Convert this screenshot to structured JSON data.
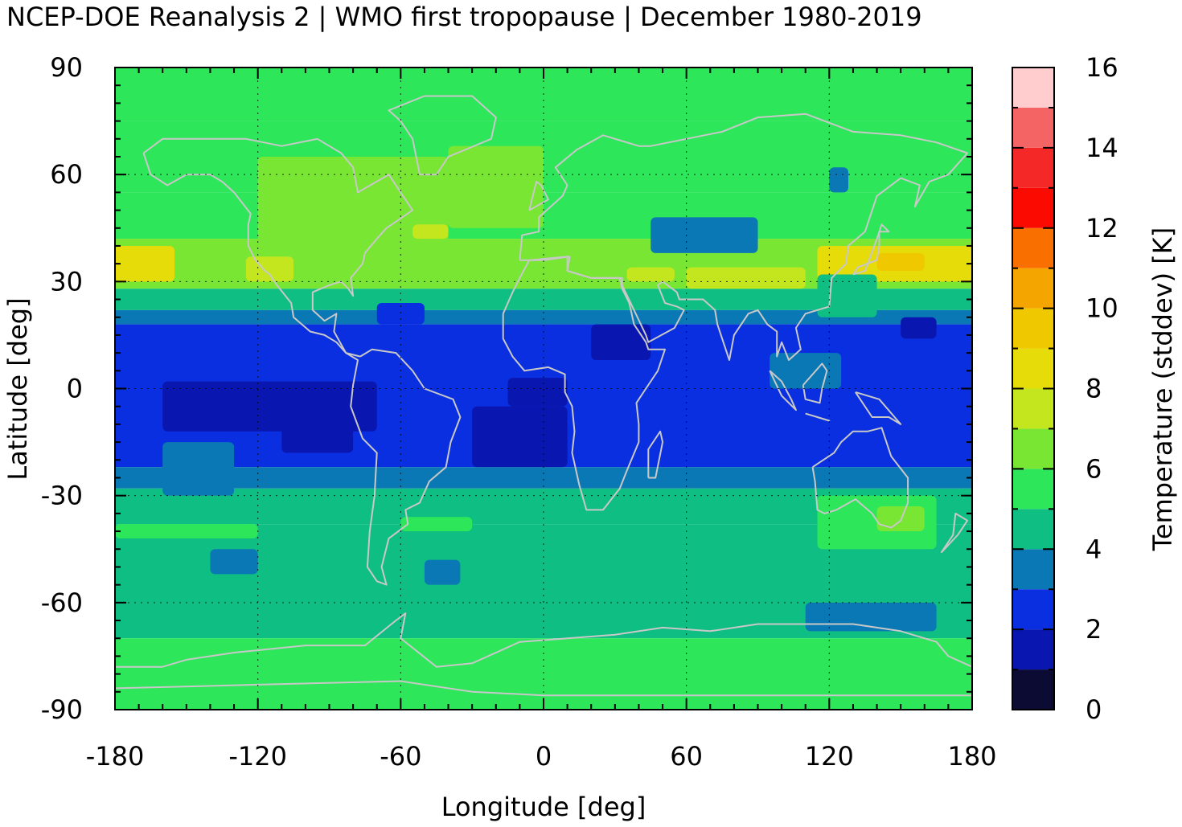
{
  "title": "NCEP-DOE Reanalysis 2 | WMO first tropopause | December 1980-2019",
  "chart_data": {
    "type": "heatmap",
    "xlabel": "Longitude [deg]",
    "ylabel": "Latitude [deg]",
    "colorbar_label": "Temperature (stddev) [K]",
    "xlim": [
      -180,
      180
    ],
    "ylim": [
      -90,
      90
    ],
    "x_ticks": [
      "-180",
      "-120",
      "-60",
      "0",
      "60",
      "120",
      "180"
    ],
    "y_ticks": [
      "90",
      "60",
      "30",
      "0",
      "-30",
      "-60",
      "-90"
    ],
    "colorbar_ticks": [
      "16",
      "14",
      "12",
      "10",
      "8",
      "6",
      "4",
      "2",
      "0"
    ],
    "colorbar_range": [
      0,
      16
    ],
    "grid": true,
    "levels": [
      {
        "from": 0,
        "to": 1,
        "color": "#0b0b33"
      },
      {
        "from": 1,
        "to": 2,
        "color": "#0a16b0"
      },
      {
        "from": 2,
        "to": 3,
        "color": "#0a2fe0"
      },
      {
        "from": 3,
        "to": 4,
        "color": "#0a78b4"
      },
      {
        "from": 4,
        "to": 5,
        "color": "#0fbe82"
      },
      {
        "from": 5,
        "to": 6,
        "color": "#2de65a"
      },
      {
        "from": 6,
        "to": 7,
        "color": "#78e632"
      },
      {
        "from": 7,
        "to": 8,
        "color": "#c3e61e"
      },
      {
        "from": 8,
        "to": 9,
        "color": "#e6dc0a"
      },
      {
        "from": 9,
        "to": 10,
        "color": "#f0c800"
      },
      {
        "from": 10,
        "to": 11,
        "color": "#f5a500"
      },
      {
        "from": 11,
        "to": 12,
        "color": "#fa7000"
      },
      {
        "from": 12,
        "to": 13,
        "color": "#fa0a00"
      },
      {
        "from": 13,
        "to": 14,
        "color": "#f52828"
      },
      {
        "from": 14,
        "to": 15,
        "color": "#f56464"
      },
      {
        "from": 15,
        "to": 16,
        "color": "#ffcdcd"
      }
    ],
    "latitude_bands": [
      {
        "lat": [
          75,
          90
        ],
        "value": 5.5
      },
      {
        "lat": [
          55,
          75
        ],
        "value": 5.5
      },
      {
        "lat": [
          42,
          55
        ],
        "value": 5.8
      },
      {
        "lat": [
          28,
          42
        ],
        "value": 6.5
      },
      {
        "lat": [
          22,
          28
        ],
        "value": 4.5
      },
      {
        "lat": [
          18,
          22
        ],
        "value": 3.5
      },
      {
        "lat": [
          -22,
          18
        ],
        "value": 2.5
      },
      {
        "lat": [
          -28,
          -22
        ],
        "value": 3.5
      },
      {
        "lat": [
          -38,
          -28
        ],
        "value": 4.6
      },
      {
        "lat": [
          -70,
          -38
        ],
        "value": 4.6
      },
      {
        "lat": [
          -90,
          -70
        ],
        "value": 5.3
      }
    ],
    "regions": [
      {
        "lon": [
          -120,
          -40
        ],
        "lat": [
          40,
          65
        ],
        "value": 6.5
      },
      {
        "lon": [
          -40,
          0
        ],
        "lat": [
          45,
          68
        ],
        "value": 6.5
      },
      {
        "lon": [
          -180,
          -155
        ],
        "lat": [
          30,
          40
        ],
        "value": 8.5
      },
      {
        "lon": [
          -125,
          -105
        ],
        "lat": [
          30,
          37
        ],
        "value": 7.5
      },
      {
        "lon": [
          -55,
          -40
        ],
        "lat": [
          42,
          46
        ],
        "value": 7.5
      },
      {
        "lon": [
          115,
          180
        ],
        "lat": [
          30,
          40
        ],
        "value": 8.5
      },
      {
        "lon": [
          140,
          160
        ],
        "lat": [
          33,
          38
        ],
        "value": 9.5
      },
      {
        "lon": [
          60,
          110
        ],
        "lat": [
          28,
          34
        ],
        "value": 7.5
      },
      {
        "lon": [
          35,
          55
        ],
        "lat": [
          30,
          34
        ],
        "value": 7.5
      },
      {
        "lon": [
          115,
          140
        ],
        "lat": [
          20,
          32
        ],
        "value": 4.5
      },
      {
        "lon": [
          45,
          90
        ],
        "lat": [
          38,
          48
        ],
        "value": 3.5
      },
      {
        "lon": [
          120,
          128
        ],
        "lat": [
          55,
          62
        ],
        "value": 3.5
      },
      {
        "lon": [
          -70,
          -50
        ],
        "lat": [
          18,
          24
        ],
        "value": 2.5
      },
      {
        "lon": [
          -160,
          -70
        ],
        "lat": [
          -12,
          2
        ],
        "value": 1.5
      },
      {
        "lon": [
          -110,
          -80
        ],
        "lat": [
          -18,
          -10
        ],
        "value": 1.5
      },
      {
        "lon": [
          -30,
          10
        ],
        "lat": [
          -22,
          -5
        ],
        "value": 1.5
      },
      {
        "lon": [
          -15,
          10
        ],
        "lat": [
          -5,
          3
        ],
        "value": 1.5
      },
      {
        "lon": [
          20,
          45
        ],
        "lat": [
          8,
          18
        ],
        "value": 1.5
      },
      {
        "lon": [
          95,
          125
        ],
        "lat": [
          0,
          10
        ],
        "value": 3.5
      },
      {
        "lon": [
          150,
          165
        ],
        "lat": [
          14,
          20
        ],
        "value": 1.5
      },
      {
        "lon": [
          -160,
          -130
        ],
        "lat": [
          -30,
          -15
        ],
        "value": 3.5
      },
      {
        "lon": [
          -140,
          -120
        ],
        "lat": [
          -52,
          -45
        ],
        "value": 3.5
      },
      {
        "lon": [
          -50,
          -35
        ],
        "lat": [
          -55,
          -48
        ],
        "value": 3.5
      },
      {
        "lon": [
          110,
          165
        ],
        "lat": [
          -68,
          -60
        ],
        "value": 3.5
      },
      {
        "lon": [
          -180,
          30
        ],
        "lat": [
          -90,
          -78
        ],
        "value": 5.3
      },
      {
        "lon": [
          115,
          165
        ],
        "lat": [
          -45,
          -30
        ],
        "value": 5.5
      },
      {
        "lon": [
          140,
          160
        ],
        "lat": [
          -40,
          -33
        ],
        "value": 6.5
      },
      {
        "lon": [
          -180,
          -120
        ],
        "lat": [
          -42,
          -38
        ],
        "value": 5.5
      },
      {
        "lon": [
          -60,
          -30
        ],
        "lat": [
          -40,
          -36
        ],
        "value": 5.5
      }
    ]
  }
}
